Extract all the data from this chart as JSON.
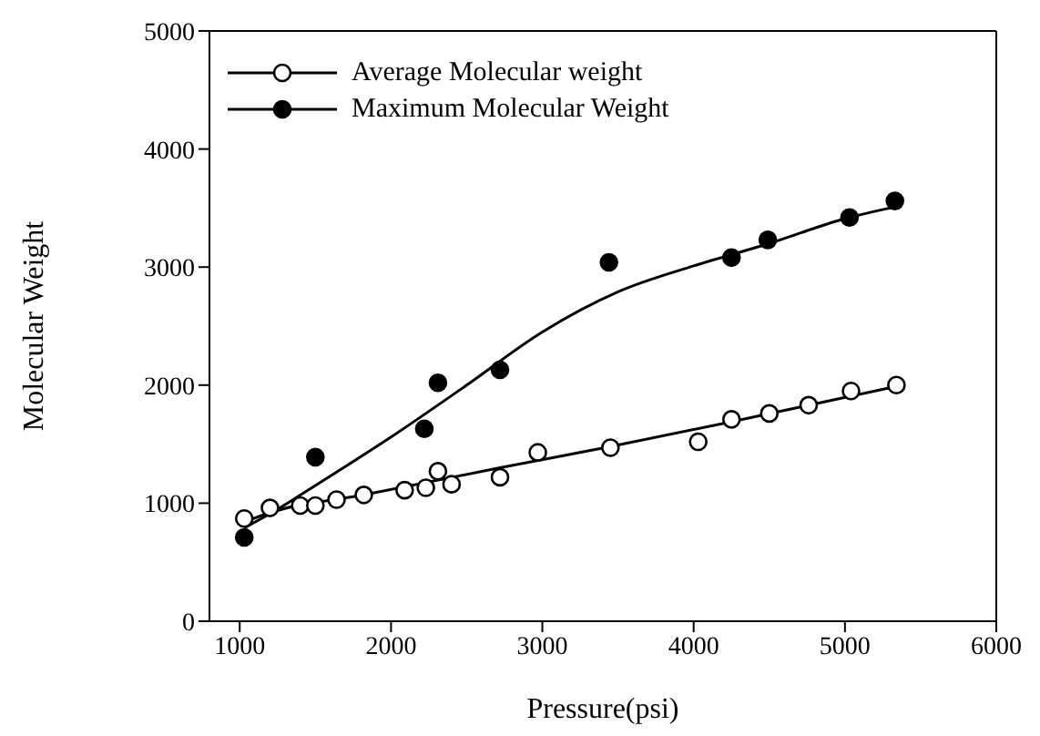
{
  "chart_data": {
    "type": "scatter",
    "xlabel": "Pressure(psi)",
    "ylabel": "Molecular Weight",
    "xlim": [
      800,
      6000
    ],
    "xticks": [
      1000,
      2000,
      3000,
      4000,
      5000,
      6000
    ],
    "ylim": [
      0,
      5000
    ],
    "yticks": [
      0,
      1000,
      2000,
      3000,
      4000,
      5000
    ],
    "legend": "top left",
    "series": [
      {
        "name": "Average Molecular weight",
        "color": "#000000",
        "marker": "open circle",
        "x": [
          1030,
          1200,
          1400,
          1500,
          1640,
          1820,
          2090,
          2230,
          2310,
          2400,
          2720,
          2970,
          3450,
          4030,
          4250,
          4500,
          4760,
          5040,
          5340
        ],
        "values": [
          870,
          960,
          980,
          980,
          1030,
          1070,
          1110,
          1130,
          1270,
          1160,
          1220,
          1430,
          1470,
          1520,
          1710,
          1760,
          1830,
          1950,
          2000
        ]
      },
      {
        "name": "Maximum Molecular Weight",
        "color": "#000000",
        "marker": "circle",
        "x": [
          1030,
          1500,
          2220,
          2310,
          2720,
          3440,
          4250,
          4490,
          5030,
          5330
        ],
        "values": [
          710,
          1390,
          1630,
          2020,
          2130,
          3040,
          3080,
          3230,
          3420,
          3560
        ]
      },
      {
        "type": "line",
        "color": "#000000",
        "marker": "none",
        "x": [
          1030,
          1200,
          1820,
          2720,
          3450,
          4250,
          5340
        ],
        "values": [
          840,
          920,
          1070,
          1300,
          1480,
          1690,
          1990
        ]
      },
      {
        "type": "line",
        "color": "#000000",
        "marker": "none",
        "x": [
          1030,
          1200,
          1500,
          2000,
          2500,
          3000,
          3500,
          4000,
          4500,
          5000,
          5330
        ],
        "values": [
          790,
          910,
          1150,
          1560,
          2000,
          2450,
          2790,
          3010,
          3200,
          3410,
          3510
        ]
      }
    ]
  }
}
